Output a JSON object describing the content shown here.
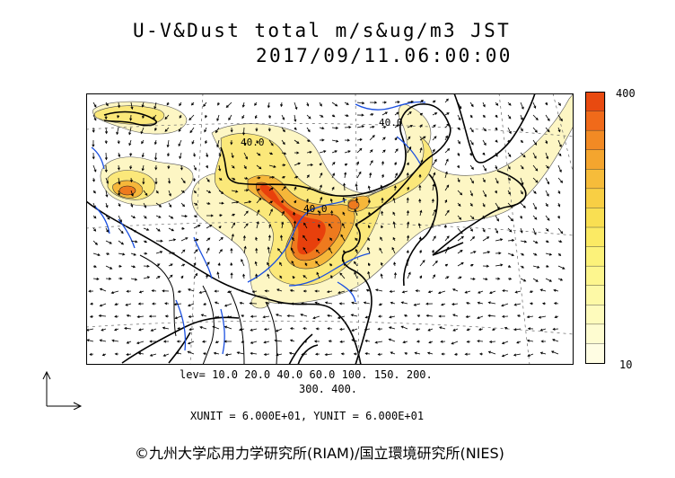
{
  "title": {
    "line1": "U-V&Dust total m/s&ug/m3 JST",
    "line2": "2017/09/11.06:00:00"
  },
  "colorbar": {
    "max_label": "400",
    "min_label": "10",
    "colors": [
      "#e84a10",
      "#f06a1a",
      "#f28a24",
      "#f4a52e",
      "#f6bc3a",
      "#f8cf44",
      "#f9df52",
      "#fbea64",
      "#fcf27a",
      "#fdf68e",
      "#fdf9a6",
      "#fefbbc",
      "#fefcd0",
      "#fffde3"
    ]
  },
  "contours": {
    "levels_line1": "lev= 10.0 20.0 40.0 60.0 100. 150. 200.",
    "levels_line2": "300. 400.",
    "map_labels": [
      "40.0",
      "40.0",
      "40.0"
    ]
  },
  "units": {
    "text": "XUNIT = 6.000E+01, YUNIT = 6.000E+01"
  },
  "credit": {
    "text": "©九州大学応用力学研究所(RIAM)/国立環境研究所(NIES)"
  },
  "colors": {
    "ocean": "#ffffff",
    "coast": "#000000",
    "rivers": "#1a4fe0",
    "dust_low": "#fdf6c0",
    "dust_high": "#e8400c"
  }
}
